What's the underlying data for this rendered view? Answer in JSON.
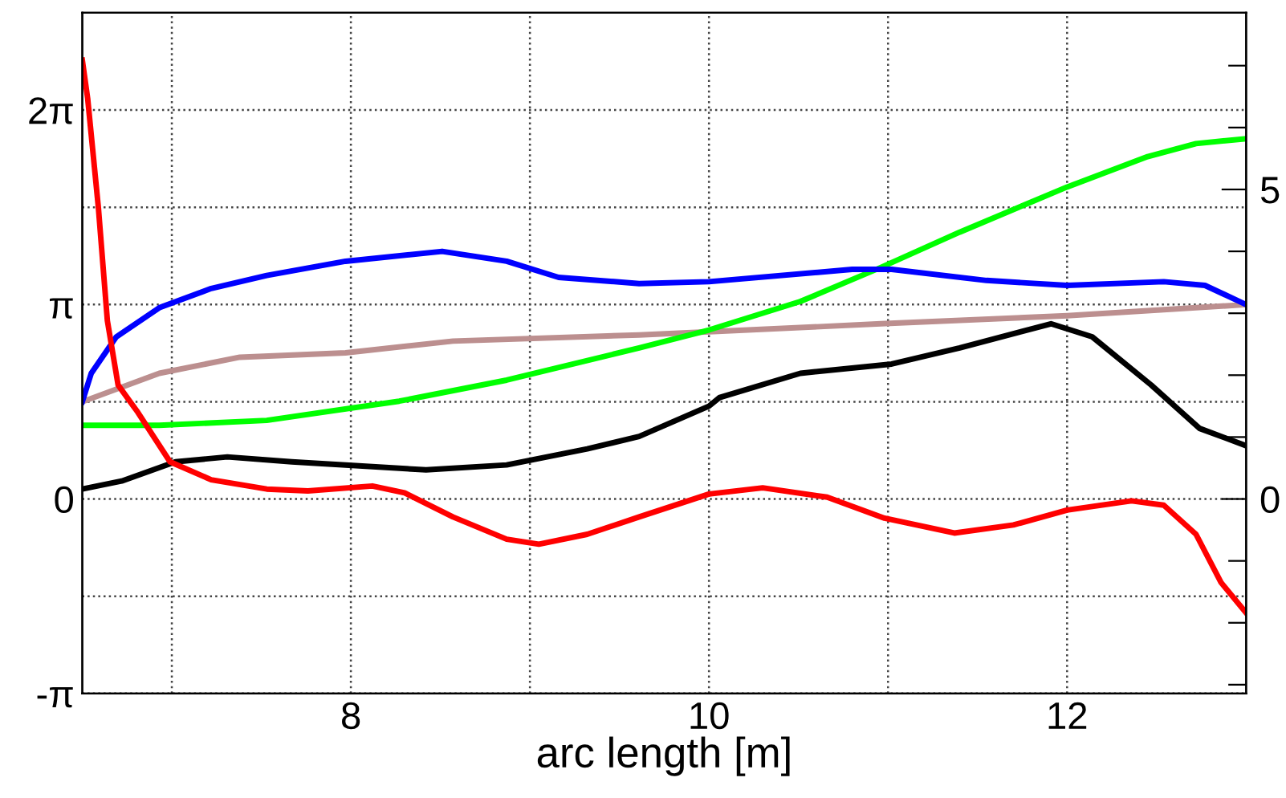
{
  "chart_data": {
    "type": "line",
    "xlabel": "arc length [m]",
    "xlim": [
      6.5,
      13
    ],
    "xticks": [
      {
        "value": 7,
        "label": null
      },
      8,
      {
        "value": 9,
        "label": null
      },
      10,
      {
        "value": 11,
        "label": null
      },
      12
    ],
    "ylim": [
      -3.1416,
      7.854
    ],
    "yticks": [
      {
        "value": -3.1416,
        "label": "-π"
      },
      {
        "value": -1.5708,
        "label": null
      },
      0,
      {
        "value": 1.5708,
        "label": null
      },
      {
        "value": 3.1416,
        "label": "π"
      },
      {
        "value": 4.7124,
        "label": null
      },
      {
        "value": 6.2832,
        "label": "2π"
      }
    ],
    "y2lim": [
      -3.1416,
      7.854
    ],
    "y2ticks": [
      {
        "value": -3,
        "label": null
      },
      {
        "value": -2,
        "label": null
      },
      {
        "value": -1,
        "label": null
      },
      0,
      {
        "value": 1,
        "label": null
      },
      {
        "value": 2,
        "label": null
      },
      {
        "value": 3,
        "label": null
      },
      {
        "value": 4,
        "label": null
      },
      5,
      {
        "value": 6,
        "label": null
      },
      {
        "value": 7,
        "label": null
      }
    ],
    "grid": true,
    "legend": false,
    "line_style": "solid",
    "marker": "none",
    "series": [
      {
        "color": "#bc8f8f",
        "x": [
          6.5,
          6.93,
          7.38,
          7.97,
          8.57,
          9.61,
          10.0,
          10.96,
          12.0,
          13.0
        ],
        "values": [
          1.57,
          2.03,
          2.29,
          2.36,
          2.55,
          2.65,
          2.7,
          2.83,
          2.96,
          3.14
        ]
      },
      {
        "color": "#00ff00",
        "x": [
          6.5,
          6.93,
          7.53,
          8.27,
          8.87,
          9.61,
          10.0,
          10.51,
          10.96,
          11.4,
          12.0,
          12.45,
          12.72,
          13.0
        ],
        "values": [
          1.19,
          1.19,
          1.27,
          1.58,
          1.92,
          2.44,
          2.73,
          3.19,
          3.74,
          4.31,
          5.04,
          5.53,
          5.74,
          5.82
        ]
      },
      {
        "color": "#0000ff",
        "x": [
          6.5,
          6.55,
          6.69,
          6.93,
          7.22,
          7.53,
          7.97,
          8.51,
          8.87,
          9.16,
          9.61,
          10.0,
          10.8,
          11.02,
          11.55,
          12.0,
          12.54,
          12.77,
          13.0
        ],
        "values": [
          1.57,
          2.03,
          2.62,
          3.09,
          3.4,
          3.61,
          3.84,
          4.0,
          3.84,
          3.58,
          3.48,
          3.51,
          3.71,
          3.71,
          3.53,
          3.45,
          3.51,
          3.45,
          3.14
        ]
      },
      {
        "color": "#000000",
        "x": [
          6.5,
          6.72,
          7.02,
          7.31,
          7.67,
          8.42,
          8.87,
          9.32,
          9.61,
          10.0,
          10.06,
          10.51,
          11.02,
          11.4,
          11.91,
          12.14,
          12.47,
          12.74,
          13.0
        ],
        "values": [
          0.16,
          0.29,
          0.6,
          0.68,
          0.6,
          0.47,
          0.55,
          0.81,
          1.01,
          1.5,
          1.64,
          2.03,
          2.18,
          2.44,
          2.83,
          2.62,
          1.84,
          1.14,
          0.86
        ]
      },
      {
        "color": "#ff0000",
        "x": [
          6.5,
          6.53,
          6.59,
          6.64,
          6.7,
          6.81,
          6.99,
          7.22,
          7.53,
          7.76,
          8.12,
          8.3,
          8.57,
          8.87,
          9.05,
          9.32,
          9.61,
          10.0,
          10.3,
          10.66,
          10.98,
          11.37,
          11.7,
          12.0,
          12.36,
          12.54,
          12.72,
          12.86,
          13.0
        ],
        "values": [
          7.09,
          6.47,
          4.7,
          2.88,
          1.84,
          1.4,
          0.6,
          0.31,
          0.16,
          0.13,
          0.21,
          0.1,
          -0.29,
          -0.65,
          -0.73,
          -0.57,
          -0.29,
          0.08,
          0.18,
          0.03,
          -0.31,
          -0.55,
          -0.42,
          -0.18,
          -0.03,
          -0.1,
          -0.57,
          -1.35,
          -1.84
        ]
      }
    ]
  }
}
